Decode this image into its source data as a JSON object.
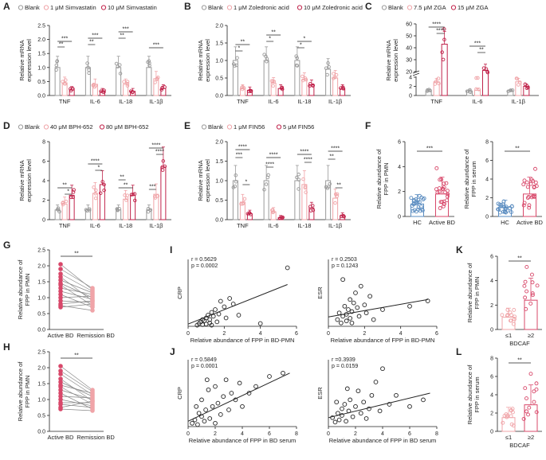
{
  "colors": {
    "blank": "#9a9a9a",
    "low": "#f0a4a8",
    "high": "#c0224a",
    "hc": "#5a8cc0",
    "bd": "#d8486a"
  },
  "panels": {
    "A": {
      "label": "A",
      "legend": [
        "Blank",
        "1 μM Simvastatin",
        "10 μM Simvastatin"
      ],
      "ylabel1": "Relative mRNA",
      "ylabel2": "expression level",
      "ticks": [
        "0.0",
        "0.5",
        "1.0",
        "1.5",
        "2.0",
        "2.5"
      ],
      "categories": [
        "TNF",
        "IL-6",
        "IL-18",
        "IL-1β"
      ],
      "sig": [
        "***",
        "**",
        "***",
        "**",
        "***",
        "**",
        "***"
      ]
    },
    "B": {
      "label": "B",
      "legend": [
        "Blank",
        "1 μM Zoledronic acid",
        "10 μM Zoledronic acid"
      ],
      "ylabel1": "Relative mRNA",
      "ylabel2": "expression level",
      "ticks": [
        "0.0",
        "0.5",
        "1.0",
        "1.5",
        "2.0"
      ],
      "categories": [
        "TNF",
        "IL-6",
        "IL-18",
        "IL-1β"
      ],
      "sig": [
        "**",
        "*",
        "**",
        "*",
        "*",
        "*"
      ]
    },
    "C": {
      "label": "C",
      "legend": [
        "Blank",
        "7.5 μM ZGA",
        "15 μM ZGA"
      ],
      "ylabel1": "Relative mRNA",
      "ylabel2": "expression level",
      "ticks": [
        "0",
        "2",
        "4",
        "20",
        "30",
        "40",
        "50",
        "60"
      ],
      "categories": [
        "TNF",
        "IL-6",
        "IL-1β"
      ],
      "sig": [
        "****",
        "****",
        "***",
        "**"
      ]
    },
    "D": {
      "label": "D",
      "legend": [
        "Blank",
        "40 μM BPH-652",
        "80 μM BPH-652"
      ],
      "ylabel1": "Relative mRNA",
      "ylabel2": "expression level",
      "ticks": [
        "0",
        "2",
        "4",
        "6",
        "8"
      ],
      "categories": [
        "TNF",
        "IL-6",
        "IL-18",
        "IL-1β"
      ],
      "sig": [
        "**",
        "*",
        "****",
        "*",
        "**",
        "**",
        "****",
        "****",
        "***"
      ]
    },
    "E": {
      "label": "E",
      "legend": [
        "Blank",
        "1 μM FIN56",
        "5 μM FIN56"
      ],
      "ylabel1": "Relative mRNA",
      "ylabel2": "expression level",
      "ticks": [
        "0.0",
        "0.5",
        "1.0",
        "1.5",
        "2.0"
      ],
      "categories": [
        "TNF",
        "IL-6",
        "IL-18",
        "IL-1β"
      ],
      "sig": [
        "****",
        "***",
        "*",
        "****",
        "****",
        "****",
        "****",
        "**",
        "****",
        "**"
      ]
    },
    "F": {
      "label": "F",
      "left": {
        "ylabel1": "Relative abundance of",
        "ylabel2": "FPP in PMN",
        "ticks": [
          "0",
          "2",
          "4",
          "6"
        ],
        "categories": [
          "HC",
          "Active BD"
        ],
        "sig": "***"
      },
      "right": {
        "ylabel1": "Relative abundance of",
        "ylabel2": "FPP in serum",
        "ticks": [
          "0",
          "2",
          "4",
          "6",
          "8"
        ],
        "categories": [
          "HC",
          "Active BD"
        ],
        "sig": "**"
      }
    },
    "G": {
      "label": "G",
      "ylabel1": "Relative abundance of",
      "ylabel2": "FPP in PMN",
      "ticks": [
        "0.0",
        "0.5",
        "1.0",
        "1.5",
        "2.0",
        "2.5"
      ],
      "categories": [
        "Active BD",
        "Remission BD"
      ],
      "sig": "**"
    },
    "H": {
      "label": "H",
      "ylabel1": "Relative abundance of",
      "ylabel2": "FPP in PMN",
      "ticks": [
        "0.0",
        "0.5",
        "1.0",
        "1.5",
        "2.0",
        "2.5"
      ],
      "categories": [
        "Active BD",
        "Remission BD"
      ],
      "sig": "**"
    },
    "I": {
      "label": "I",
      "left": {
        "ylabel": "CRP",
        "xlabel": "Relative abundance of FPP in BD-PMN",
        "r": "r = 0.5629",
        "p": "p = 0.0002",
        "xticks": [
          "0",
          "2",
          "4",
          "6"
        ]
      },
      "right": {
        "ylabel": "ESR",
        "xlabel": "Relative abundance of FPP in BD-PMN",
        "r": "r = 0.2503",
        "p": "p = 0.1243",
        "xticks": [
          "0",
          "2",
          "4",
          "6"
        ]
      }
    },
    "J": {
      "label": "J",
      "left": {
        "ylabel": "CRP",
        "xlabel": "Relative abundance of FPP in BD serum",
        "r": "r = 0.5849",
        "p": "p = 0.0001",
        "xticks": [
          "0",
          "2",
          "4",
          "6",
          "8"
        ]
      },
      "right": {
        "ylabel": "ESR",
        "xlabel": "Relative abundance of FPP in BD serum",
        "r": "r =0.3939",
        "p": "p = 0.0159",
        "xticks": [
          "0",
          "2",
          "4",
          "6",
          "8"
        ]
      }
    },
    "K": {
      "label": "K",
      "ylabel1": "Relative abundance of",
      "ylabel2": "FPP in PMN",
      "ticks": [
        "0",
        "2",
        "4",
        "6"
      ],
      "categories": [
        "≤1",
        "≥2"
      ],
      "xlabel": "BDCAF",
      "sig": "**"
    },
    "L": {
      "label": "L",
      "ylabel1": "Relative abundance of",
      "ylabel2": "FPP in serum",
      "ticks": [
        "0",
        "2",
        "4",
        "6",
        "8"
      ],
      "categories": [
        "≤1",
        "≥2"
      ],
      "xlabel": "BDCAF",
      "sig": "**"
    }
  },
  "chart_data": [
    {
      "panel": "A",
      "type": "bar",
      "categories": [
        "TNF",
        "IL-6",
        "IL-18",
        "IL-1β"
      ],
      "ylabel": "Relative mRNA expression level",
      "ylim": [
        0,
        2.5
      ],
      "series": [
        {
          "name": "Blank",
          "values": [
            1.0,
            1.0,
            1.0,
            1.0
          ]
        },
        {
          "name": "1 μM Simvastatin",
          "values": [
            0.45,
            0.4,
            0.4,
            0.6
          ]
        },
        {
          "name": "10 μM Simvastatin",
          "values": [
            0.2,
            0.15,
            0.15,
            0.25
          ]
        }
      ]
    },
    {
      "panel": "B",
      "type": "bar",
      "categories": [
        "TNF",
        "IL-6",
        "IL-18",
        "IL-1β"
      ],
      "ylabel": "Relative mRNA expression level",
      "ylim": [
        0,
        2.0
      ],
      "series": [
        {
          "name": "Blank",
          "values": [
            1.0,
            1.0,
            1.0,
            0.75
          ]
        },
        {
          "name": "1 μM Zoledronic acid",
          "values": [
            0.2,
            0.35,
            0.45,
            0.5
          ]
        },
        {
          "name": "10 μM Zoledronic acid",
          "values": [
            0.15,
            0.2,
            0.3,
            0.2
          ]
        }
      ]
    },
    {
      "panel": "C",
      "type": "bar",
      "categories": [
        "TNF",
        "IL-6",
        "IL-1β"
      ],
      "ylabel": "Relative mRNA expression level",
      "ylim": [
        0,
        60
      ],
      "series": [
        {
          "name": "Blank",
          "values": [
            1.0,
            1.0,
            1.0
          ]
        },
        {
          "name": "7.5 μM ZGA",
          "values": [
            3.0,
            4.5,
            3.0
          ]
        },
        {
          "name": "15 μM ZGA",
          "values": [
            43,
            21,
            2.0
          ]
        }
      ]
    },
    {
      "panel": "D",
      "type": "bar",
      "categories": [
        "TNF",
        "IL-6",
        "IL-18",
        "IL-1β"
      ],
      "ylabel": "Relative mRNA expression level",
      "ylim": [
        0,
        8
      ],
      "series": [
        {
          "name": "Blank",
          "values": [
            1.0,
            1.0,
            1.0,
            1.0
          ]
        },
        {
          "name": "40 μM BPH-652",
          "values": [
            1.6,
            2.7,
            2.1,
            2.6
          ]
        },
        {
          "name": "80 μM BPH-652",
          "values": [
            2.5,
            3.6,
            2.5,
            5.4
          ]
        }
      ]
    },
    {
      "panel": "E",
      "type": "bar",
      "categories": [
        "TNF",
        "IL-6",
        "IL-18",
        "IL-1β"
      ],
      "ylabel": "Relative mRNA expression level",
      "ylim": [
        0,
        2.0
      ],
      "series": [
        {
          "name": "Blank",
          "values": [
            1.0,
            1.0,
            1.0,
            1.0
          ]
        },
        {
          "name": "1 μM FIN56",
          "values": [
            0.45,
            0.2,
            0.9,
            0.55
          ]
        },
        {
          "name": "5 μM FIN56",
          "values": [
            0.15,
            0.05,
            0.3,
            0.1
          ]
        }
      ]
    },
    {
      "panel": "F-left",
      "type": "bar",
      "categories": [
        "HC",
        "Active BD"
      ],
      "ylabel": "Relative abundance of FPP in PMN",
      "ylim": [
        0,
        6
      ],
      "values": [
        1.0,
        1.8
      ]
    },
    {
      "panel": "F-right",
      "type": "bar",
      "categories": [
        "HC",
        "Active BD"
      ],
      "ylabel": "Relative abundance of FPP in serum",
      "ylim": [
        0,
        8
      ],
      "values": [
        1.0,
        2.4
      ]
    },
    {
      "panel": "G",
      "type": "line",
      "categories": [
        "Active BD",
        "Remission BD"
      ],
      "ylabel": "Relative abundance of FPP in PMN",
      "ylim": [
        0,
        2.5
      ],
      "pairs": [
        [
          2.05,
          1.25
        ],
        [
          1.9,
          1.3
        ],
        [
          1.75,
          1.2
        ],
        [
          1.65,
          0.9
        ],
        [
          1.55,
          1.15
        ],
        [
          1.45,
          1.0
        ],
        [
          1.4,
          0.75
        ],
        [
          1.3,
          1.1
        ],
        [
          1.2,
          0.95
        ],
        [
          1.1,
          0.7
        ],
        [
          1.0,
          1.05
        ],
        [
          0.9,
          0.85
        ],
        [
          0.8,
          0.9
        ],
        [
          0.75,
          0.6
        ],
        [
          0.7,
          0.8
        ]
      ]
    },
    {
      "panel": "H",
      "type": "line",
      "categories": [
        "Active BD",
        "Remission BD"
      ],
      "ylabel": "Relative abundance of FPP in PMN",
      "ylim": [
        0,
        2.5
      ],
      "pairs": [
        [
          2.05,
          1.3
        ],
        [
          1.9,
          1.25
        ],
        [
          1.8,
          1.15
        ],
        [
          1.65,
          0.95
        ],
        [
          1.55,
          1.1
        ],
        [
          1.45,
          1.2
        ],
        [
          1.4,
          0.85
        ],
        [
          1.3,
          1.0
        ],
        [
          1.2,
          0.7
        ],
        [
          1.1,
          1.05
        ],
        [
          1.0,
          0.8
        ],
        [
          0.9,
          0.9
        ],
        [
          0.85,
          0.75
        ],
        [
          0.75,
          0.95
        ],
        [
          0.7,
          0.65
        ]
      ]
    },
    {
      "panel": "I-left",
      "type": "scatter",
      "xlabel": "Relative abundance of FPP in BD-PMN",
      "ylabel": "CRP",
      "xlim": [
        0,
        6
      ],
      "ylim": [
        0,
        120
      ],
      "points": [
        [
          0.5,
          2
        ],
        [
          0.6,
          5
        ],
        [
          0.7,
          8
        ],
        [
          0.8,
          3
        ],
        [
          0.9,
          10
        ],
        [
          1.0,
          15
        ],
        [
          1.0,
          4
        ],
        [
          1.1,
          20
        ],
        [
          1.2,
          12
        ],
        [
          1.2,
          6
        ],
        [
          1.3,
          25
        ],
        [
          1.4,
          18
        ],
        [
          1.5,
          30
        ],
        [
          1.6,
          8
        ],
        [
          1.7,
          22
        ],
        [
          1.8,
          45
        ],
        [
          2.0,
          35
        ],
        [
          2.1,
          15
        ],
        [
          2.3,
          50
        ],
        [
          2.5,
          40
        ],
        [
          0.8,
          12
        ],
        [
          1.3,
          2
        ],
        [
          2.8,
          20
        ],
        [
          4.0,
          5
        ],
        [
          5.5,
          105
        ]
      ],
      "fit": {
        "x": [
          0,
          5.5
        ],
        "y": [
          4,
          75
        ]
      }
    },
    {
      "panel": "I-right",
      "type": "scatter",
      "xlabel": "Relative abundance of FPP in BD-PMN",
      "ylabel": "ESR",
      "xlim": [
        0,
        6
      ],
      "ylim": [
        0,
        100
      ],
      "points": [
        [
          0.5,
          10
        ],
        [
          0.6,
          20
        ],
        [
          0.7,
          5
        ],
        [
          0.8,
          15
        ],
        [
          0.9,
          30
        ],
        [
          1.0,
          18
        ],
        [
          1.0,
          8
        ],
        [
          1.1,
          25
        ],
        [
          1.2,
          40
        ],
        [
          1.2,
          12
        ],
        [
          1.3,
          22
        ],
        [
          1.4,
          35
        ],
        [
          1.5,
          50
        ],
        [
          1.6,
          28
        ],
        [
          1.7,
          15
        ],
        [
          1.8,
          60
        ],
        [
          2.0,
          32
        ],
        [
          2.1,
          20
        ],
        [
          2.3,
          45
        ],
        [
          2.5,
          10
        ],
        [
          0.8,
          70
        ],
        [
          1.3,
          5
        ],
        [
          3.0,
          25
        ],
        [
          4.5,
          30
        ],
        [
          5.5,
          38
        ]
      ],
      "fit": {
        "x": [
          0,
          5.5
        ],
        "y": [
          14,
          40
        ]
      }
    },
    {
      "panel": "J-left",
      "type": "scatter",
      "xlabel": "Relative abundance of FPP in BD serum",
      "ylabel": "CRP",
      "xlim": [
        0,
        8
      ],
      "ylim": [
        0,
        100
      ],
      "points": [
        [
          0.3,
          5
        ],
        [
          0.5,
          10
        ],
        [
          0.7,
          3
        ],
        [
          0.8,
          20
        ],
        [
          1.0,
          15
        ],
        [
          1.0,
          40
        ],
        [
          1.2,
          8
        ],
        [
          1.3,
          25
        ],
        [
          1.5,
          55
        ],
        [
          1.6,
          12
        ],
        [
          1.8,
          30
        ],
        [
          2.0,
          60
        ],
        [
          2.2,
          35
        ],
        [
          2.4,
          18
        ],
        [
          2.6,
          45
        ],
        [
          2.8,
          70
        ],
        [
          3.0,
          25
        ],
        [
          3.2,
          50
        ],
        [
          3.5,
          40
        ],
        [
          3.8,
          65
        ],
        [
          4.0,
          30
        ],
        [
          4.5,
          50
        ],
        [
          5.0,
          60
        ],
        [
          6.0,
          75
        ],
        [
          7.0,
          80
        ],
        [
          0.6,
          30
        ],
        [
          1.4,
          70
        ],
        [
          2.0,
          5
        ]
      ],
      "fit": {
        "x": [
          0,
          7.5
        ],
        "y": [
          8,
          80
        ]
      }
    },
    {
      "panel": "J-right",
      "type": "scatter",
      "xlabel": "Relative abundance of FPP in BD serum",
      "ylabel": "ESR",
      "xlim": [
        0,
        8
      ],
      "ylim": [
        0,
        150
      ],
      "points": [
        [
          0.3,
          20
        ],
        [
          0.5,
          10
        ],
        [
          0.7,
          30
        ],
        [
          0.8,
          15
        ],
        [
          1.0,
          40
        ],
        [
          1.0,
          25
        ],
        [
          1.2,
          50
        ],
        [
          1.3,
          12
        ],
        [
          1.5,
          35
        ],
        [
          1.6,
          60
        ],
        [
          1.8,
          22
        ],
        [
          2.0,
          45
        ],
        [
          2.2,
          80
        ],
        [
          2.4,
          30
        ],
        [
          2.6,
          55
        ],
        [
          2.8,
          18
        ],
        [
          3.0,
          40
        ],
        [
          3.2,
          70
        ],
        [
          3.5,
          100
        ],
        [
          3.8,
          35
        ],
        [
          4.0,
          130
        ],
        [
          4.5,
          50
        ],
        [
          5.0,
          70
        ],
        [
          6.0,
          45
        ],
        [
          7.0,
          60
        ],
        [
          0.6,
          55
        ],
        [
          1.4,
          85
        ]
      ],
      "fit": {
        "x": [
          0,
          7.5
        ],
        "y": [
          20,
          75
        ]
      }
    },
    {
      "panel": "K",
      "type": "bar",
      "categories": [
        "≤1",
        "≥2"
      ],
      "xlabel": "BDCAF",
      "ylabel": "Relative abundance of FPP in PMN",
      "ylim": [
        0,
        6
      ],
      "values": [
        1.0,
        2.4
      ]
    },
    {
      "panel": "L",
      "type": "bar",
      "categories": [
        "≤1",
        "≥2"
      ],
      "xlabel": "BDCAF",
      "ylabel": "Relative abundance of FPP in serum",
      "ylim": [
        0,
        8
      ],
      "values": [
        1.5,
        2.9
      ]
    }
  ]
}
